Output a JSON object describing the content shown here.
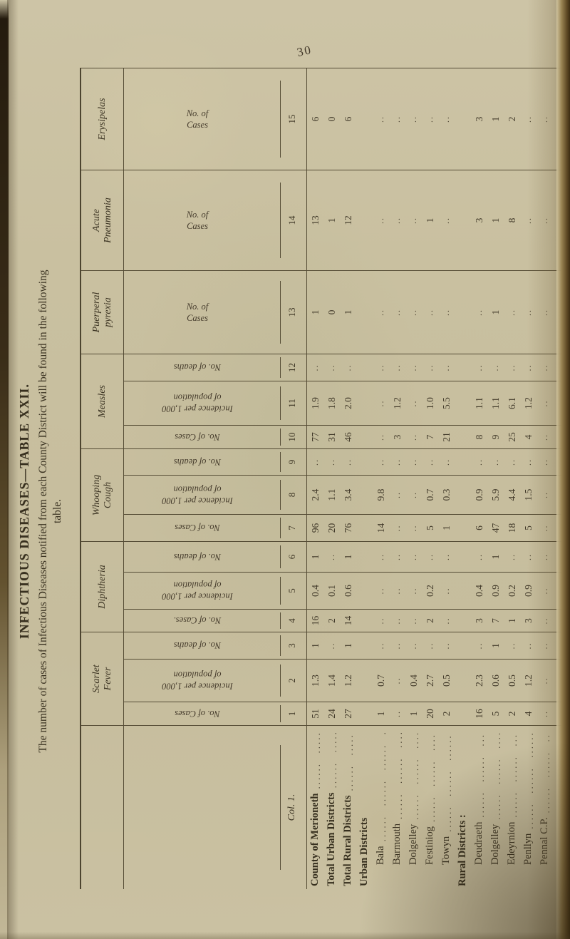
{
  "page_number": "30",
  "title": "INFECTIOUS DISEASES—TABLE XXII.",
  "subtitle_line1": "The number of cases of Infectious Diseases notified from each County District will be found in the following",
  "subtitle_line2": "table.",
  "table": {
    "first_col_header": "Col. 1.",
    "groups": [
      {
        "lines": [
          "Scarlet",
          "Fever"
        ],
        "span": 3
      },
      {
        "lines": [
          "Diphtheria"
        ],
        "span": 3
      },
      {
        "lines": [
          "Whooping",
          "Cough"
        ],
        "span": 3
      },
      {
        "lines": [
          "Measles"
        ],
        "span": 3
      },
      {
        "lines": [
          "Puerperal",
          "pyrexia"
        ],
        "span": 1
      },
      {
        "lines": [
          "Acute",
          "Pneumonia"
        ],
        "span": 1
      },
      {
        "lines": [
          "Erysipelas"
        ],
        "span": 1
      }
    ],
    "columns": [
      {
        "num": "1",
        "sub": [
          "No. of Cases"
        ],
        "dir": "up"
      },
      {
        "num": "2",
        "sub": [
          "Incidence per 1,000",
          "of population"
        ],
        "dir": "up"
      },
      {
        "num": "3",
        "sub": [
          "No. of deaths"
        ],
        "dir": "up"
      },
      {
        "num": "4",
        "sub": [
          "No. of Cases."
        ],
        "dir": "up"
      },
      {
        "num": "5",
        "sub": [
          "Incidence per 1,000",
          "of population"
        ],
        "dir": "up"
      },
      {
        "num": "6",
        "sub": [
          "No. of deaths"
        ],
        "dir": "up"
      },
      {
        "num": "7",
        "sub": [
          "No. of Cases"
        ],
        "dir": "up"
      },
      {
        "num": "8",
        "sub": [
          "Incidence per 1,000",
          "of population"
        ],
        "dir": "up"
      },
      {
        "num": "9",
        "sub": [
          "No. of deaths"
        ],
        "dir": "up"
      },
      {
        "num": "10",
        "sub": [
          "No. of Cases"
        ],
        "dir": "up"
      },
      {
        "num": "11",
        "sub": [
          "Incidence per 1,000",
          "of population"
        ],
        "dir": "up"
      },
      {
        "num": "12",
        "sub": [
          "No. of deaths"
        ],
        "dir": "up"
      },
      {
        "num": "13",
        "sub": [
          "No. of",
          "Cases"
        ],
        "dir": "down"
      },
      {
        "num": "14",
        "sub": [
          "No. of",
          "Cases"
        ],
        "dir": "down"
      },
      {
        "num": "15",
        "sub": [
          "No. of",
          "Cases"
        ],
        "dir": "down"
      }
    ],
    "blank_marker": "..",
    "rows": [
      {
        "label": "County of Merioneth",
        "type": "main",
        "values": [
          "51",
          "1.3",
          "1",
          "16",
          "0.4",
          "1",
          "96",
          "2.4",
          "..",
          "77",
          "1.9",
          "..",
          "1",
          "13",
          "6"
        ]
      },
      {
        "label": "Total Urban Districts",
        "type": "main",
        "values": [
          "24",
          "1.4",
          "..",
          "2",
          "0.1",
          "..",
          "20",
          "1.1",
          "..",
          "31",
          "1.8",
          "..",
          "0",
          "1",
          "0"
        ]
      },
      {
        "label": "Total Rural Districts",
        "type": "main",
        "values": [
          "27",
          "1.2",
          "1",
          "14",
          "0.6",
          "1",
          "76",
          "3.4",
          "..",
          "46",
          "2.0",
          "..",
          "1",
          "12",
          "6"
        ]
      },
      {
        "label": "Urban Districts",
        "type": "section",
        "values": []
      },
      {
        "label": "Bala",
        "type": "sub",
        "values": [
          "1",
          "0.7",
          "..",
          "..",
          "..",
          "..",
          "14",
          "9.8",
          "..",
          "..",
          "..",
          "..",
          "..",
          "..",
          ".."
        ]
      },
      {
        "label": "Barmouth",
        "type": "sub",
        "values": [
          "..",
          "..",
          "..",
          "..",
          "..",
          "..",
          "..",
          "..",
          "..",
          "3",
          "1.2",
          "..",
          "..",
          "..",
          ".."
        ]
      },
      {
        "label": "Dolgelley",
        "type": "sub",
        "values": [
          "1",
          "0.4",
          "..",
          "..",
          "..",
          "..",
          "..",
          "..",
          "..",
          "..",
          "..",
          "..",
          "..",
          "..",
          ".."
        ]
      },
      {
        "label": "Festiniog",
        "type": "sub",
        "values": [
          "20",
          "2.7",
          "..",
          "2",
          "0.2",
          "..",
          "5",
          "0.7",
          "..",
          "7",
          "1.0",
          "..",
          "..",
          "1",
          ".."
        ]
      },
      {
        "label": "Towyn",
        "type": "sub",
        "values": [
          "2",
          "0.5",
          "..",
          "..",
          "..",
          "..",
          "1",
          "0.3",
          "..",
          "21",
          "5.5",
          "..",
          "..",
          "..",
          ".."
        ]
      },
      {
        "label": "Rural Districts :",
        "type": "section",
        "values": []
      },
      {
        "label": "Deudraeth",
        "type": "sub",
        "values": [
          "16",
          "2.3",
          "..",
          "3",
          "0.4",
          "..",
          "6",
          "0.9",
          "..",
          "8",
          "1.1",
          "..",
          "..",
          "3",
          "3"
        ]
      },
      {
        "label": "Dolgelley",
        "type": "sub",
        "values": [
          "5",
          "0.6",
          "1",
          "7",
          "0.9",
          "1",
          "47",
          "5.9",
          "..",
          "9",
          "1.1",
          "..",
          "1",
          "1",
          "1"
        ]
      },
      {
        "label": "Edeyrnion",
        "type": "sub",
        "values": [
          "2",
          "0.5",
          "..",
          "1",
          "0.2",
          "..",
          "18",
          "4.4",
          "..",
          "25",
          "6.1",
          "..",
          "..",
          "8",
          "2"
        ]
      },
      {
        "label": "Penllyn",
        "type": "sub",
        "values": [
          "4",
          "1.2",
          "..",
          "3",
          "0.9",
          "..",
          "5",
          "1.5",
          "..",
          "4",
          "1.2",
          "..",
          "..",
          "..",
          ".."
        ]
      },
      {
        "label": "Pennal C.P.",
        "type": "sub",
        "values": [
          "..",
          "..",
          "..",
          "..",
          "..",
          "..",
          "..",
          "..",
          "..",
          "..",
          "..",
          "..",
          "..",
          "..",
          ".."
        ]
      }
    ]
  }
}
